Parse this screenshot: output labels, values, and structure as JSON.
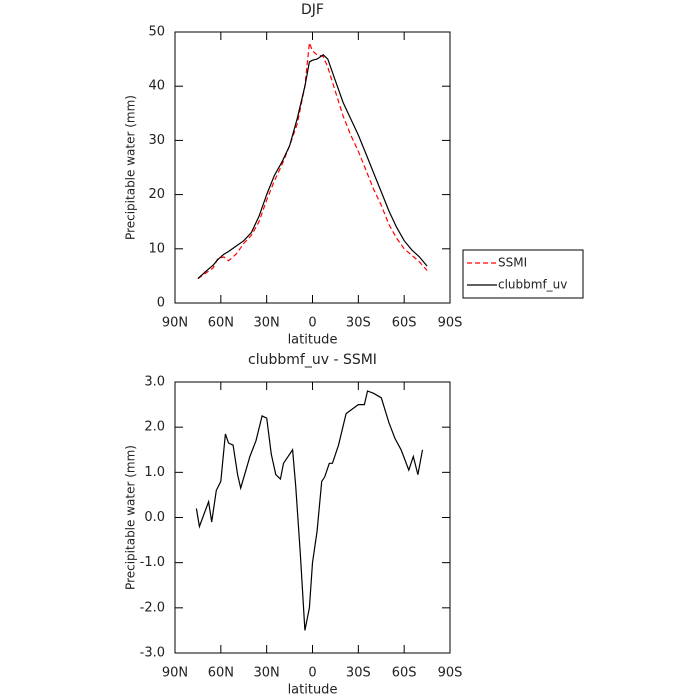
{
  "chart_data": [
    {
      "type": "line",
      "title": "DJF",
      "x_label": "latitude",
      "y_label": "Precipitable water (mm)",
      "x": [
        75,
        70,
        65,
        62,
        58,
        55,
        50,
        45,
        40,
        35,
        30,
        25,
        20,
        15,
        10,
        5,
        2,
        0,
        -3,
        -7,
        -10,
        -15,
        -20,
        -25,
        -30,
        -35,
        -40,
        -45,
        -50,
        -55,
        -60,
        -65,
        -70,
        -75
      ],
      "series": [
        {
          "name": "SSMI",
          "color": "#ff0000",
          "style": "dashed",
          "values": [
            4.5,
            5.5,
            6.5,
            8.2,
            8.5,
            7.8,
            9,
            11,
            12.5,
            15,
            19,
            22.5,
            25.5,
            29,
            33,
            40,
            48,
            46.5,
            45.8,
            45.5,
            43.5,
            39,
            34.5,
            31,
            28,
            24.5,
            21,
            18,
            14.5,
            12,
            10,
            8.8,
            7.6,
            6
          ]
        },
        {
          "name": "clubbmf_uv",
          "color": "#000000",
          "style": "solid",
          "values": [
            4.5,
            5.8,
            7,
            8,
            9,
            9.5,
            10.5,
            11.5,
            13,
            16,
            20,
            23.5,
            26,
            29,
            34,
            40,
            44.5,
            44.8,
            45,
            45.8,
            45,
            41,
            37,
            34,
            31,
            27.5,
            24,
            20.5,
            17,
            14,
            11.5,
            9.8,
            8.5,
            6.8
          ]
        }
      ],
      "xlim": [
        90,
        -90
      ],
      "xticks": [
        {
          "value": 90,
          "label": "90N"
        },
        {
          "value": 60,
          "label": "60N"
        },
        {
          "value": 30,
          "label": "30N"
        },
        0,
        {
          "value": -30,
          "label": "30S"
        },
        {
          "value": -60,
          "label": "60S"
        },
        {
          "value": -90,
          "label": "90S"
        }
      ],
      "ylim": [
        0,
        50
      ],
      "yticks": [
        0,
        10,
        20,
        30,
        40,
        50
      ],
      "legend": "outside-right"
    },
    {
      "type": "line",
      "title": "clubbmf_uv - SSMI",
      "x_label": "latitude",
      "y_label": "Precipitable water (mm)",
      "x": [
        76,
        74,
        68,
        66,
        63,
        60,
        57,
        55,
        52,
        49,
        47,
        44,
        41,
        37,
        33,
        30,
        27,
        24,
        21,
        19,
        13,
        11,
        8,
        5,
        2,
        0,
        -3,
        -6,
        -8,
        -11,
        -13,
        -17,
        -22,
        -26,
        -30,
        -34,
        -36,
        -40,
        -45,
        -50,
        -54,
        -58,
        -63,
        -66,
        -69,
        -72
      ],
      "series": [
        {
          "name": "clubbmf_uv - SSMI",
          "color": "#000000",
          "style": "solid",
          "values": [
            0.2,
            -0.2,
            0.35,
            -0.1,
            0.6,
            0.8,
            1.85,
            1.65,
            1.6,
            0.95,
            0.65,
            1.0,
            1.35,
            1.7,
            2.25,
            2.2,
            1.4,
            0.95,
            0.85,
            1.2,
            1.5,
            0.7,
            -0.8,
            -2.5,
            -2.0,
            -1.0,
            -0.3,
            0.8,
            0.9,
            1.2,
            1.2,
            1.6,
            2.3,
            2.4,
            2.5,
            2.5,
            2.8,
            2.75,
            2.65,
            2.1,
            1.75,
            1.5,
            1.05,
            1.35,
            0.95,
            1.5
          ]
        }
      ],
      "xlim": [
        90,
        -90
      ],
      "xticks": [
        {
          "value": 90,
          "label": "90N"
        },
        {
          "value": 60,
          "label": "60N"
        },
        {
          "value": 30,
          "label": "30N"
        },
        0,
        {
          "value": -30,
          "label": "30S"
        },
        {
          "value": -60,
          "label": "60S"
        },
        {
          "value": -90,
          "label": "90S"
        }
      ],
      "ylim": [
        -3,
        3
      ],
      "yticks": [
        {
          "value": -3,
          "label": "-3.0"
        },
        {
          "value": -2,
          "label": "-2.0"
        },
        {
          "value": -1,
          "label": "-1.0"
        },
        {
          "value": 0,
          "label": "0.0"
        },
        {
          "value": 1,
          "label": "1.0"
        },
        {
          "value": 2,
          "label": "2.0"
        },
        {
          "value": 3,
          "label": "3.0"
        }
      ]
    }
  ]
}
